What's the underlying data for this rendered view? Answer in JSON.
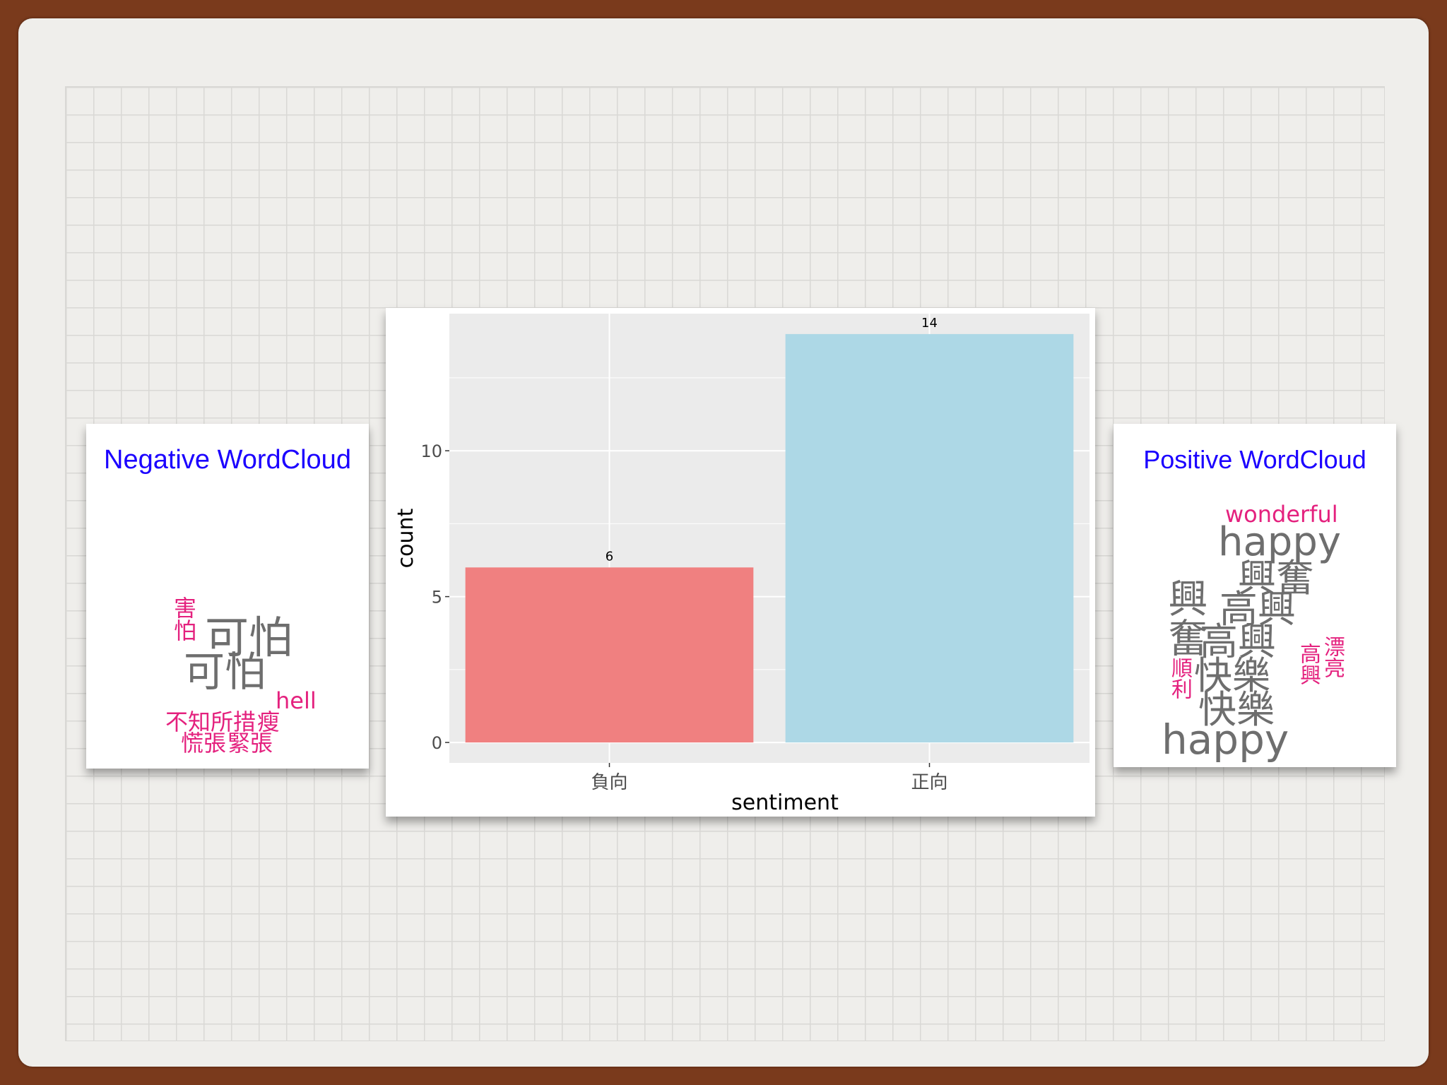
{
  "negative_cloud": {
    "title": "Negative WordCloud",
    "words": [
      {
        "text": "可怕",
        "weight": "large"
      },
      {
        "text": "可怕",
        "weight": "large"
      },
      {
        "text": "害怕",
        "weight": "small"
      },
      {
        "text": "hell",
        "weight": "small"
      },
      {
        "text": "不知所措",
        "weight": "small"
      },
      {
        "text": "瘦",
        "weight": "small"
      },
      {
        "text": "慌張",
        "weight": "small"
      },
      {
        "text": "緊張",
        "weight": "small"
      }
    ]
  },
  "positive_cloud": {
    "title": "Positive WordCloud",
    "words": [
      {
        "text": "wonderful",
        "weight": "small"
      },
      {
        "text": "happy",
        "weight": "large"
      },
      {
        "text": "興奮",
        "weight": "large"
      },
      {
        "text": "興奮",
        "weight": "large"
      },
      {
        "text": "高興",
        "weight": "large"
      },
      {
        "text": "高興",
        "weight": "large"
      },
      {
        "text": "快樂",
        "weight": "large"
      },
      {
        "text": "快樂",
        "weight": "large"
      },
      {
        "text": "順利",
        "weight": "small"
      },
      {
        "text": "高興",
        "weight": "small"
      },
      {
        "text": "漂亮",
        "weight": "small"
      },
      {
        "text": "happy",
        "weight": "large"
      }
    ]
  },
  "chart_data": {
    "type": "bar",
    "categories": [
      "負向",
      "正向"
    ],
    "values": [
      6,
      14
    ],
    "data_labels": [
      "6",
      "14"
    ],
    "colors": [
      "#f08080",
      "#add8e6"
    ],
    "xlabel": "sentiment",
    "ylabel": "count",
    "yticks": [
      0,
      5,
      10
    ],
    "ylim": [
      -0.7,
      14.7
    ],
    "grid": true,
    "panel_background": "#ebebeb"
  }
}
